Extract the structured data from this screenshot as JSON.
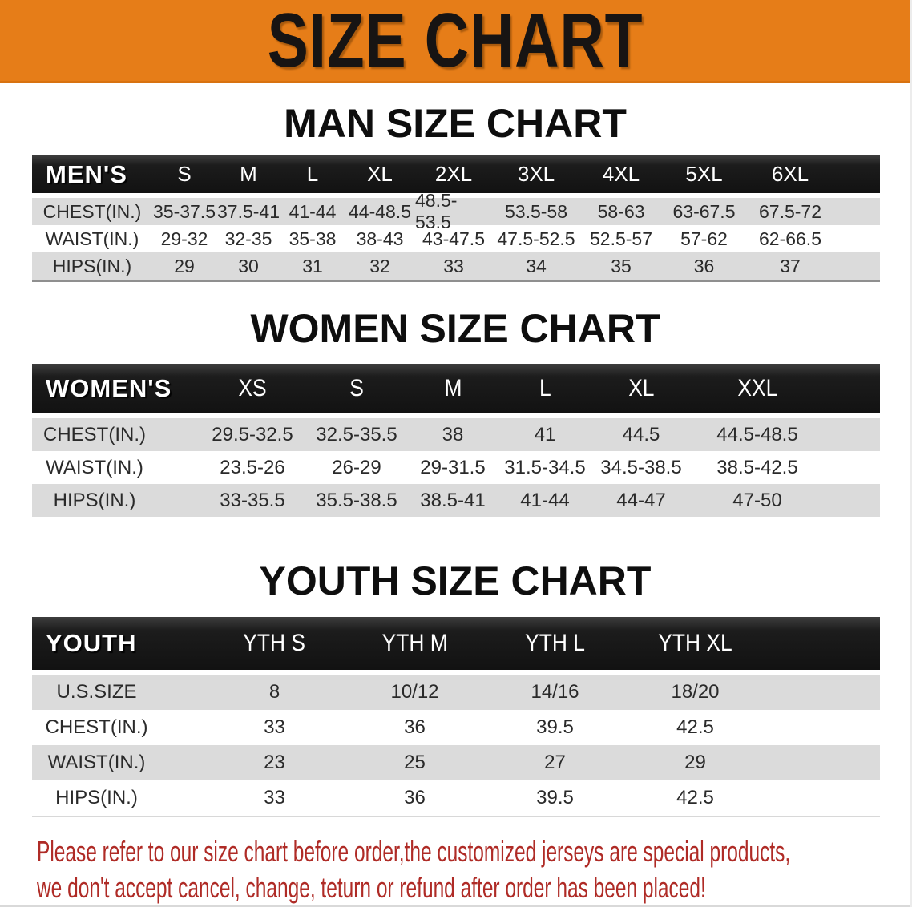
{
  "banner": {
    "title": "SIZE CHART",
    "bg_color": "#E67D18",
    "text_color": "#171413"
  },
  "chart_data": [
    {
      "type": "table",
      "id": "men",
      "title": "MAN SIZE CHART",
      "row_header": "MEN'S",
      "columns": [
        "S",
        "M",
        "L",
        "XL",
        "2XL",
        "3XL",
        "4XL",
        "5XL",
        "6XL"
      ],
      "rows": [
        {
          "label": "CHEST(IN.)",
          "values": [
            "35-37.5",
            "37.5-41",
            "41-44",
            "44-48.5",
            "48.5-53.5",
            "53.5-58",
            "58-63",
            "63-67.5",
            "67.5-72"
          ]
        },
        {
          "label": "WAIST(IN.)",
          "values": [
            "29-32",
            "32-35",
            "35-38",
            "38-43",
            "43-47.5",
            "47.5-52.5",
            "52.5-57",
            "57-62",
            "62-66.5"
          ]
        },
        {
          "label": "HIPS(IN.)",
          "values": [
            "29",
            "30",
            "31",
            "32",
            "33",
            "34",
            "35",
            "36",
            "37"
          ]
        }
      ]
    },
    {
      "type": "table",
      "id": "women",
      "title": "WOMEN SIZE CHART",
      "row_header": "WOMEN'S",
      "columns": [
        "XS",
        "S",
        "M",
        "L",
        "XL",
        "XXL"
      ],
      "rows": [
        {
          "label": "CHEST(IN.)",
          "values": [
            "29.5-32.5",
            "32.5-35.5",
            "38",
            "41",
            "44.5",
            "44.5-48.5"
          ]
        },
        {
          "label": "WAIST(IN.)",
          "values": [
            "23.5-26",
            "26-29",
            "29-31.5",
            "31.5-34.5",
            "34.5-38.5",
            "38.5-42.5"
          ]
        },
        {
          "label": "HIPS(IN.)",
          "values": [
            "33-35.5",
            "35.5-38.5",
            "38.5-41",
            "41-44",
            "44-47",
            "47-50"
          ]
        }
      ]
    },
    {
      "type": "table",
      "id": "youth",
      "title": "YOUTH SIZE CHART",
      "row_header": "YOUTH",
      "columns": [
        "YTH S",
        "YTH M",
        "YTH L",
        "YTH XL"
      ],
      "rows": [
        {
          "label": "U.S.SIZE",
          "values": [
            "8",
            "10/12",
            "14/16",
            "18/20"
          ]
        },
        {
          "label": "CHEST(IN.)",
          "values": [
            "33",
            "36",
            "39.5",
            "42.5"
          ]
        },
        {
          "label": "WAIST(IN.)",
          "values": [
            "23",
            "25",
            "27",
            "29"
          ]
        },
        {
          "label": "HIPS(IN.)",
          "values": [
            "33",
            "36",
            "39.5",
            "42.5"
          ]
        }
      ]
    }
  ],
  "disclaimer": {
    "color": "#AF2B26",
    "lines": [
      "Please refer to our size chart before order,the customized jerseys are special products,",
      "we don't accept cancel, change, teturn or refund after order has been placed!"
    ]
  },
  "colors": {
    "banner_orange": "#E67D18",
    "header_black": "#1b1b1b",
    "row_gray": "#dbdbdb",
    "row_white": "#ffffff",
    "disclaimer_red": "#AF2B26"
  }
}
